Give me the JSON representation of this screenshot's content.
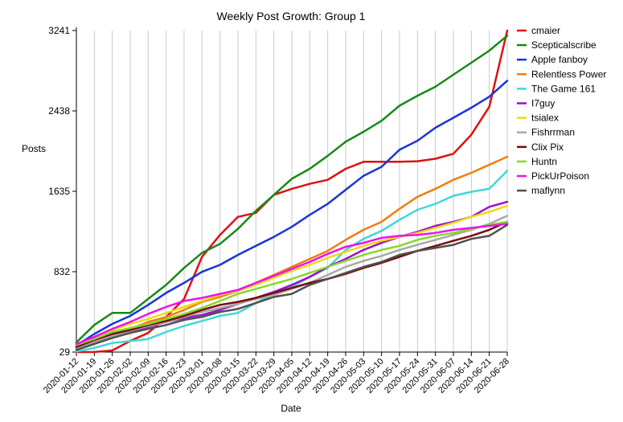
{
  "chart_data": {
    "type": "line",
    "title": "Weekly Post Growth: Group 1",
    "xlabel": "Date",
    "ylabel": "Posts",
    "y_ticks": [
      29,
      832,
      1635,
      2438,
      3241
    ],
    "ylim": [
      29,
      3241
    ],
    "grid": "vertical",
    "legend_position": "right",
    "x": [
      "2020-01-12",
      "2020-01-19",
      "2020-01-26",
      "2020-02-02",
      "2020-02-09",
      "2020-02-16",
      "2020-02-23",
      "2020-03-01",
      "2020-03-08",
      "2020-03-15",
      "2020-03-22",
      "2020-03-29",
      "2020-04-05",
      "2020-04-12",
      "2020-04-19",
      "2020-04-26",
      "2020-05-03",
      "2020-05-10",
      "2020-05-17",
      "2020-05-24",
      "2020-05-31",
      "2020-06-07",
      "2020-06-14",
      "2020-06-21",
      "2020-06-28"
    ],
    "series": [
      {
        "name": "cmaier",
        "color": "#dd1111",
        "values": [
          29,
          30,
          45,
          140,
          220,
          380,
          560,
          980,
          1200,
          1380,
          1420,
          1600,
          1660,
          1710,
          1750,
          1860,
          1930,
          1930,
          1930,
          1935,
          1960,
          2010,
          2200,
          2480,
          3241
        ]
      },
      {
        "name": "Scepticalscribe",
        "color": "#188a18",
        "values": [
          125,
          300,
          420,
          420,
          560,
          700,
          870,
          1020,
          1110,
          1260,
          1440,
          1600,
          1760,
          1860,
          1990,
          2130,
          2230,
          2340,
          2490,
          2590,
          2680,
          2800,
          2920,
          3040,
          3190
        ]
      },
      {
        "name": "Apple fanboy",
        "color": "#1a35d6",
        "values": [
          95,
          210,
          310,
          390,
          500,
          620,
          720,
          830,
          900,
          1000,
          1090,
          1180,
          1280,
          1400,
          1510,
          1650,
          1790,
          1880,
          2050,
          2140,
          2270,
          2370,
          2470,
          2580,
          2740
        ]
      },
      {
        "name": "Relentless Power",
        "color": "#f07d10",
        "values": [
          60,
          130,
          200,
          260,
          330,
          380,
          450,
          530,
          580,
          640,
          720,
          800,
          880,
          960,
          1040,
          1150,
          1250,
          1330,
          1460,
          1580,
          1660,
          1750,
          1820,
          1900,
          1980
        ]
      },
      {
        "name": "The Game 161",
        "color": "#40d8d8",
        "values": [
          35,
          70,
          120,
          140,
          160,
          230,
          290,
          340,
          390,
          420,
          520,
          610,
          680,
          780,
          870,
          1050,
          1160,
          1240,
          1350,
          1450,
          1510,
          1590,
          1630,
          1660,
          1840
        ]
      },
      {
        "name": "I7guy",
        "color": "#9b10cf",
        "values": [
          65,
          120,
          180,
          230,
          280,
          330,
          370,
          400,
          450,
          510,
          570,
          630,
          700,
          780,
          880,
          960,
          1050,
          1120,
          1180,
          1230,
          1290,
          1330,
          1380,
          1480,
          1530
        ]
      },
      {
        "name": "tsialex",
        "color": "#eeda10",
        "values": [
          90,
          170,
          250,
          310,
          360,
          420,
          480,
          540,
          600,
          640,
          700,
          770,
          840,
          900,
          970,
          1030,
          1090,
          1140,
          1180,
          1220,
          1270,
          1320,
          1380,
          1430,
          1490
        ]
      },
      {
        "name": "Fishrrman",
        "color": "#a8a8a8",
        "values": [
          70,
          130,
          190,
          240,
          290,
          330,
          380,
          430,
          470,
          510,
          560,
          600,
          660,
          720,
          800,
          880,
          940,
          990,
          1050,
          1100,
          1150,
          1200,
          1250,
          1310,
          1390
        ]
      },
      {
        "name": "Clix Pix",
        "color": "#7a0a0a",
        "values": [
          80,
          150,
          210,
          250,
          300,
          340,
          390,
          450,
          500,
          530,
          570,
          620,
          670,
          720,
          760,
          810,
          870,
          920,
          980,
          1040,
          1090,
          1140,
          1190,
          1250,
          1330
        ]
      },
      {
        "name": "Huntn",
        "color": "#88d82a",
        "values": [
          100,
          160,
          230,
          270,
          310,
          360,
          410,
          470,
          540,
          610,
          660,
          710,
          760,
          820,
          880,
          940,
          1000,
          1050,
          1090,
          1150,
          1190,
          1220,
          1260,
          1300,
          1330
        ]
      },
      {
        "name": "PickUrPoison",
        "color": "#ee10ee",
        "values": [
          110,
          180,
          260,
          330,
          410,
          480,
          540,
          570,
          610,
          650,
          720,
          790,
          860,
          930,
          1010,
          1080,
          1120,
          1170,
          1190,
          1200,
          1220,
          1250,
          1270,
          1290,
          1310
        ]
      },
      {
        "name": "maflynn",
        "color": "#505050",
        "values": [
          50,
          110,
          170,
          220,
          260,
          300,
          350,
          380,
          430,
          460,
          520,
          580,
          610,
          700,
          760,
          820,
          880,
          930,
          1000,
          1040,
          1070,
          1100,
          1160,
          1190,
          1300
        ]
      }
    ]
  }
}
